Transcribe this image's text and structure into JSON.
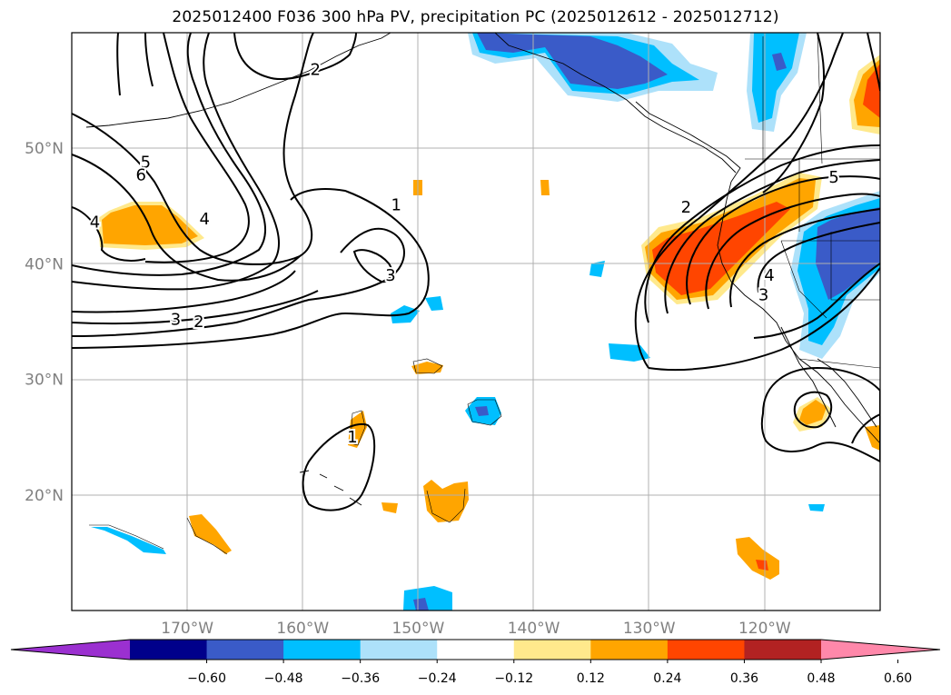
{
  "title": "2025012400 F036 300 hPa PV, precipitation PC (2025012612 - 2025012712)",
  "map": {
    "lon_range": [
      -180,
      -110
    ],
    "lat_range": [
      10,
      60
    ],
    "lon_ticks": [
      {
        "lon": -170,
        "label": "170°W"
      },
      {
        "lon": -160,
        "label": "160°W"
      },
      {
        "lon": -150,
        "label": "150°W"
      },
      {
        "lon": -140,
        "label": "140°W"
      },
      {
        "lon": -130,
        "label": "130°W"
      },
      {
        "lon": -120,
        "label": "120°W"
      }
    ],
    "lat_ticks": [
      {
        "lat": 20,
        "label": "20°N"
      },
      {
        "lat": 30,
        "label": "30°N"
      },
      {
        "lat": 40,
        "label": "40°N"
      },
      {
        "lat": 50,
        "label": "50°N"
      }
    ],
    "contour_labels": [
      {
        "text": "2",
        "lon": -158.9,
        "lat": 56.8
      },
      {
        "text": "5",
        "lon": -173.6,
        "lat": 48.8
      },
      {
        "text": "6",
        "lon": -174.0,
        "lat": 47.7
      },
      {
        "text": "4",
        "lon": -168.5,
        "lat": 43.9
      },
      {
        "text": "4",
        "lon": -178.0,
        "lat": 43.6
      },
      {
        "text": "1",
        "lon": -151.9,
        "lat": 45.1
      },
      {
        "text": "3",
        "lon": -152.4,
        "lat": 39.0
      },
      {
        "text": "3",
        "lon": -171.0,
        "lat": 35.2
      },
      {
        "text": "2",
        "lon": -169.0,
        "lat": 35.0
      },
      {
        "text": "1",
        "lon": -155.7,
        "lat": 25.0
      },
      {
        "text": "2",
        "lon": -126.8,
        "lat": 44.9
      },
      {
        "text": "5",
        "lon": -114.0,
        "lat": 47.5
      },
      {
        "text": "4",
        "lon": -119.6,
        "lat": 39.0
      },
      {
        "text": "3",
        "lon": -120.1,
        "lat": 37.3
      }
    ]
  },
  "colorbar": {
    "colors": [
      "#9B30D0",
      "#00008B",
      "#3A5BC8",
      "#00BFFF",
      "#ADE1FA",
      "#FFFFFF",
      "#FFE98C",
      "#FFA500",
      "#FF4500",
      "#B22222",
      "#FF88AA"
    ],
    "tick_labels": [
      "−0.60",
      "−0.48",
      "−0.36",
      "−0.24",
      "−0.12",
      "0.12",
      "0.24",
      "0.36",
      "0.48",
      "0.60"
    ]
  },
  "chart_data": {
    "type": "contour",
    "fields": [
      "300 hPa PV (contours)",
      "precipitation PC (shaded)"
    ],
    "pv_contour_levels": [
      1,
      2,
      3,
      4,
      5,
      6
    ],
    "precip_pc_levels": [
      -0.6,
      -0.48,
      -0.36,
      -0.24,
      -0.12,
      0.12,
      0.24,
      0.36,
      0.48,
      0.6
    ]
  }
}
